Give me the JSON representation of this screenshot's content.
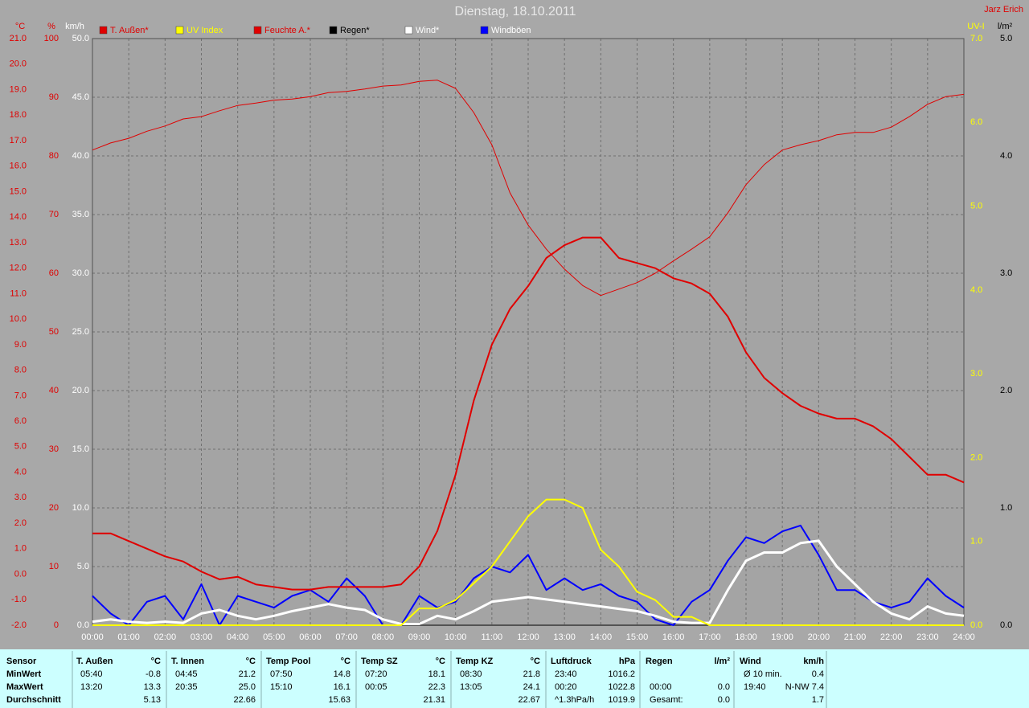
{
  "chart_data": {
    "type": "line",
    "title": "Dienstag, 18.10.2011",
    "source": "Jarz Erich",
    "xlim": [
      0,
      24
    ],
    "xticks": [
      {
        "value": 0,
        "label": "00:00"
      },
      {
        "value": 1,
        "label": "01:00"
      },
      {
        "value": 2,
        "label": "02:00"
      },
      {
        "value": 3,
        "label": "03:00"
      },
      {
        "value": 4,
        "label": "04:00"
      },
      {
        "value": 5,
        "label": "05:00"
      },
      {
        "value": 6,
        "label": "06:00"
      },
      {
        "value": 7,
        "label": "07:00"
      },
      {
        "value": 8,
        "label": "08:00"
      },
      {
        "value": 9,
        "label": "09:00"
      },
      {
        "value": 10,
        "label": "10:00"
      },
      {
        "value": 11,
        "label": "11:00"
      },
      {
        "value": 12,
        "label": "12:00"
      },
      {
        "value": 13,
        "label": "13:00"
      },
      {
        "value": 14,
        "label": "14:00"
      },
      {
        "value": 15,
        "label": "15:00"
      },
      {
        "value": 16,
        "label": "16:00"
      },
      {
        "value": 17,
        "label": "17:00"
      },
      {
        "value": 18,
        "label": "18:00"
      },
      {
        "value": 19,
        "label": "19:00"
      },
      {
        "value": 20,
        "label": "20:00"
      },
      {
        "value": 21,
        "label": "21:00"
      },
      {
        "value": 22,
        "label": "22:00"
      },
      {
        "value": 23,
        "label": "23:00"
      },
      {
        "value": 24,
        "label": "24:00"
      }
    ],
    "grid": true,
    "axes": [
      {
        "name": "°C",
        "color": "#e00000",
        "lim": [
          -2,
          21
        ],
        "ticks": [
          {
            "value": -2,
            "label": "-2.0"
          },
          {
            "value": -1,
            "label": "-1.0"
          },
          {
            "value": 0,
            "label": "0.0"
          },
          {
            "value": 1,
            "label": "1.0"
          },
          {
            "value": 2,
            "label": "2.0"
          },
          {
            "value": 3,
            "label": "3.0"
          },
          {
            "value": 4,
            "label": "4.0"
          },
          {
            "value": 5,
            "label": "5.0"
          },
          {
            "value": 6,
            "label": "6.0"
          },
          {
            "value": 7,
            "label": "7.0"
          },
          {
            "value": 8,
            "label": "8.0"
          },
          {
            "value": 9,
            "label": "9.0"
          },
          {
            "value": 10,
            "label": "10.0"
          },
          {
            "value": 11,
            "label": "11.0"
          },
          {
            "value": 12,
            "label": "12.0"
          },
          {
            "value": 13,
            "label": "13.0"
          },
          {
            "value": 14,
            "label": "14.0"
          },
          {
            "value": 15,
            "label": "15.0"
          },
          {
            "value": 16,
            "label": "16.0"
          },
          {
            "value": 17,
            "label": "17.0"
          },
          {
            "value": 18,
            "label": "18.0"
          },
          {
            "value": 19,
            "label": "19.0"
          },
          {
            "value": 20,
            "label": "20.0"
          },
          {
            "value": 21,
            "label": "21.0"
          }
        ]
      },
      {
        "name": "%",
        "color": "#e00000",
        "lim": [
          0,
          100
        ],
        "ticks": [
          0,
          10,
          20,
          30,
          40,
          50,
          60,
          70,
          80,
          90,
          100
        ],
        "grid": true
      },
      {
        "name": "km/h",
        "color": "#ffffff",
        "lim": [
          0,
          50
        ],
        "ticks": [
          {
            "value": 0,
            "label": "0.0"
          },
          {
            "value": 5,
            "label": "5.0"
          },
          {
            "value": 10,
            "label": "10.0"
          },
          {
            "value": 15,
            "label": "15.0"
          },
          {
            "value": 20,
            "label": "20.0"
          },
          {
            "value": 25,
            "label": "25.0"
          },
          {
            "value": 30,
            "label": "30.0"
          },
          {
            "value": 35,
            "label": "35.0"
          },
          {
            "value": 40,
            "label": "40.0"
          },
          {
            "value": 45,
            "label": "45.0"
          },
          {
            "value": 50,
            "label": "50.0"
          }
        ]
      },
      {
        "name": "UV-I",
        "color": "#ffff00",
        "lim": [
          0,
          7
        ],
        "ticks": [
          {
            "value": 0,
            "label": "0.0"
          },
          {
            "value": 1,
            "label": "1.0"
          },
          {
            "value": 2,
            "label": "2.0"
          },
          {
            "value": 3,
            "label": "3.0"
          },
          {
            "value": 4,
            "label": "4.0"
          },
          {
            "value": 5,
            "label": "5.0"
          },
          {
            "value": 6,
            "label": "6.0"
          },
          {
            "value": 7,
            "label": "7.0"
          }
        ]
      },
      {
        "name": "l/m²",
        "color": "#000000",
        "lim": [
          0,
          5
        ],
        "ticks": [
          {
            "value": 0,
            "label": "0.0"
          },
          {
            "value": 1,
            "label": "1.0"
          },
          {
            "value": 2,
            "label": "2.0"
          },
          {
            "value": 3,
            "label": "3.0"
          },
          {
            "value": 4,
            "label": "4.0"
          },
          {
            "value": 5,
            "label": "5.0"
          }
        ]
      }
    ],
    "x": [
      0,
      0.5,
      1,
      1.5,
      2,
      2.5,
      3,
      3.5,
      4,
      4.5,
      5,
      5.5,
      6,
      6.5,
      7,
      7.5,
      8,
      8.5,
      9,
      9.5,
      10,
      10.5,
      11,
      11.5,
      12,
      12.5,
      13,
      13.5,
      14,
      14.5,
      15,
      15.5,
      16,
      16.5,
      17,
      17.5,
      18,
      18.5,
      19,
      19.5,
      20,
      20.5,
      21,
      21.5,
      22,
      22.5,
      23,
      23.5,
      24
    ],
    "series": [
      {
        "name": "T. Außen*",
        "color": "#e00000",
        "label_color": "#e00000",
        "axis": 0,
        "values": [
          1.6,
          1.6,
          1.3,
          1.0,
          0.7,
          0.5,
          0.1,
          -0.2,
          -0.1,
          -0.4,
          -0.5,
          -0.6,
          -0.6,
          -0.5,
          -0.5,
          -0.5,
          -0.5,
          -0.4,
          0.3,
          1.7,
          3.9,
          6.8,
          9.0,
          10.4,
          11.3,
          12.4,
          12.9,
          13.2,
          13.2,
          12.4,
          12.2,
          12.0,
          11.6,
          11.4,
          11.0,
          10.1,
          8.7,
          7.7,
          7.1,
          6.6,
          6.3,
          6.1,
          6.1,
          5.8,
          5.3,
          4.6,
          3.9,
          3.9,
          3.6
        ]
      },
      {
        "name": "UV Index",
        "color": "#ffff00",
        "label_color": "#ffff00",
        "axis": 3,
        "values": [
          0,
          0,
          0,
          0,
          0,
          0,
          0,
          0,
          0,
          0,
          0,
          0,
          0,
          0,
          0,
          0,
          0,
          0,
          0.2,
          0.2,
          0.3,
          0.5,
          0.7,
          1.0,
          1.3,
          1.5,
          1.5,
          1.4,
          0.9,
          0.7,
          0.4,
          0.3,
          0.1,
          0.1,
          0,
          0,
          0,
          0,
          0,
          0,
          0,
          0,
          0,
          0,
          0,
          0,
          0,
          0,
          0
        ]
      },
      {
        "name": "Feuchte A.*",
        "color": "#e00000",
        "label_color": "#e00000",
        "axis": 1,
        "values": [
          81.0,
          82.2,
          83.0,
          84.2,
          85.1,
          86.3,
          86.7,
          87.7,
          88.6,
          89.0,
          89.5,
          89.7,
          90.1,
          90.8,
          91.0,
          91.4,
          91.9,
          92.1,
          92.7,
          92.9,
          91.5,
          87.4,
          81.9,
          73.7,
          68.2,
          64.1,
          60.7,
          57.9,
          56.2,
          57.3,
          58.4,
          60.0,
          62.1,
          64.1,
          66.2,
          70.3,
          75.1,
          78.5,
          81.0,
          81.9,
          82.6,
          83.6,
          84.0,
          84.0,
          84.9,
          86.7,
          88.8,
          90.1,
          90.5
        ]
      },
      {
        "name": "Regen*",
        "color": "#000000",
        "label_color": "#000000",
        "axis": 4,
        "values": [
          0,
          0,
          0,
          0,
          0,
          0,
          0,
          0,
          0,
          0,
          0,
          0,
          0,
          0,
          0,
          0,
          0,
          0,
          0,
          0,
          0,
          0,
          0,
          0,
          0,
          0,
          0,
          0,
          0,
          0,
          0,
          0,
          0,
          0,
          0,
          0,
          0,
          0,
          0,
          0,
          0,
          0,
          0,
          0,
          0,
          0,
          0,
          0,
          0
        ]
      },
      {
        "name": "Wind*",
        "color": "#ffffff",
        "label_color": "#ffffff",
        "axis": 2,
        "values": [
          0.3,
          0.5,
          0.3,
          0.2,
          0.3,
          0.2,
          1.0,
          1.3,
          0.8,
          0.5,
          0.8,
          1.2,
          1.5,
          1.8,
          1.5,
          1.3,
          0.5,
          0.1,
          0.1,
          0.8,
          0.5,
          1.2,
          2.0,
          2.2,
          2.4,
          2.2,
          2.0,
          1.8,
          1.6,
          1.4,
          1.2,
          0.8,
          0.3,
          0.2,
          0.2,
          3.0,
          5.5,
          6.2,
          6.2,
          7.0,
          7.2,
          5.0,
          3.5,
          2.0,
          1.0,
          0.5,
          1.6,
          1.0,
          0.8
        ]
      },
      {
        "name": "Windböen",
        "color": "#0000ff",
        "label_color": "#ffffff",
        "axis": 2,
        "values": [
          2.5,
          1.0,
          0,
          2.0,
          2.5,
          0.5,
          3.5,
          0,
          2.5,
          2.0,
          1.5,
          2.5,
          3.0,
          2.0,
          4.0,
          2.5,
          0,
          0,
          2.5,
          1.5,
          2.0,
          4.0,
          5.0,
          4.5,
          6.0,
          3.0,
          4.0,
          3.0,
          3.5,
          2.5,
          2.0,
          0.5,
          0,
          2.0,
          3.0,
          5.5,
          7.5,
          7.0,
          8.0,
          8.5,
          6.0,
          3.0,
          3.0,
          2.0,
          1.5,
          2.0,
          4.0,
          2.5,
          1.5
        ]
      }
    ]
  },
  "table": {
    "row_labels": [
      "Sensor",
      "MinWert",
      "MaxWert",
      "Durchschnitt"
    ],
    "blocks": [
      {
        "title": "T. Außen",
        "unit": "°C",
        "rows": [
          [
            "05:40",
            "-0.8"
          ],
          [
            "13:20",
            "13.3"
          ],
          [
            null,
            "5.13"
          ]
        ]
      },
      {
        "title": "T. Innen",
        "unit": "°C",
        "rows": [
          [
            "04:45",
            "21.2"
          ],
          [
            "20:35",
            "25.0"
          ],
          [
            null,
            "22.66"
          ]
        ]
      },
      {
        "title": "Temp Pool",
        "unit": "°C",
        "rows": [
          [
            "07:50",
            "14.8"
          ],
          [
            "15:10",
            "16.1"
          ],
          [
            null,
            "15.63"
          ]
        ]
      },
      {
        "title": "Temp SZ",
        "unit": "°C",
        "rows": [
          [
            "07:20",
            "18.1"
          ],
          [
            "00:05",
            "22.3"
          ],
          [
            null,
            "21.31"
          ]
        ]
      },
      {
        "title": "Temp KZ",
        "unit": "°C",
        "rows": [
          [
            "08:30",
            "21.8"
          ],
          [
            "13:05",
            "24.1"
          ],
          [
            null,
            "22.67"
          ]
        ]
      },
      {
        "title": "Luftdruck",
        "unit": "hPa",
        "rows": [
          [
            "23:40",
            "1016.2"
          ],
          [
            "00:20",
            "1022.8"
          ],
          [
            "^1.3hPa/h",
            "1019.9"
          ]
        ]
      },
      {
        "title": "Regen",
        "unit": "l/m²",
        "rows": [
          [
            null,
            null
          ],
          [
            "00:00",
            "0.0"
          ],
          [
            "Gesamt:",
            "0.0"
          ]
        ]
      },
      {
        "title": "Wind",
        "unit": "km/h",
        "rows": [
          [
            "Ø 10 min.",
            "0.4"
          ],
          [
            "19:40",
            "N-NW 7.4"
          ],
          [
            null,
            "1.7"
          ]
        ]
      }
    ]
  }
}
